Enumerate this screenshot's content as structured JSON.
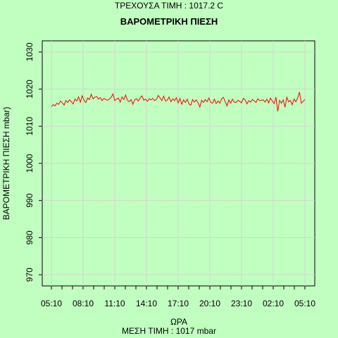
{
  "header": {
    "current_value": "ΤΡΕΧΟΥΣΑ ΤΙΜΗ : 1017.2 C"
  },
  "footer": {
    "mean_value": "ΜΕΣΗ ΤΙΜΗ : 1017 mbar"
  },
  "colors": {
    "background": "#c0ffc0",
    "line": "#ff0000",
    "grid": "#d3d3d3"
  },
  "chart_data": {
    "type": "line",
    "title": "ΒΑΡΟΜΕΤΡΙΚΗ ΠΙΕΣΗ",
    "xlabel": "ΩΡΑ",
    "ylabel": "ΒΑΡΟΜΕΤΡΙΚΗ ΠΙΕΣΗ mbar)",
    "ylim": [
      967,
      1033
    ],
    "yticks": [
      970,
      980,
      990,
      1000,
      1010,
      1020,
      1030
    ],
    "xtick_labels": [
      "05:10",
      "08:10",
      "11:10",
      "14:10",
      "17:10",
      "20:10",
      "23:10",
      "02:10",
      "05:10"
    ],
    "grid": true,
    "series": [
      {
        "values": [
          1015.3,
          1015.8,
          1015.5,
          1016.2,
          1015.9,
          1016.8,
          1016.3,
          1015.7,
          1016.9,
          1016.4,
          1017.1,
          1016.6,
          1016.0,
          1017.3,
          1016.8,
          1017.9,
          1016.5,
          1018.2,
          1017.0,
          1016.4,
          1017.6,
          1017.2,
          1018.6,
          1017.4,
          1017.8,
          1018.0,
          1017.3,
          1017.7,
          1016.9,
          1017.5,
          1017.2,
          1017.0,
          1017.3,
          1017.8,
          1018.7,
          1016.9,
          1017.3,
          1017.6,
          1016.5,
          1017.9,
          1017.2,
          1018.4,
          1017.0,
          1016.6,
          1017.2,
          1015.9,
          1017.1,
          1017.4,
          1016.8,
          1017.6,
          1018.2,
          1017.0,
          1017.3,
          1016.7,
          1017.4,
          1017.1,
          1017.5,
          1016.9,
          1017.2,
          1018.3,
          1017.6,
          1016.9,
          1018.1,
          1016.8,
          1017.0,
          1017.9,
          1016.6,
          1017.4,
          1016.9,
          1017.7,
          1016.3,
          1017.5,
          1015.9,
          1017.1,
          1016.4,
          1017.3,
          1016.0,
          1015.7,
          1017.2,
          1016.5,
          1017.1,
          1016.3,
          1015.2,
          1017.0,
          1016.4,
          1017.2,
          1016.6,
          1017.6,
          1016.4,
          1016.2,
          1017.3,
          1016.1,
          1016.8,
          1016.2,
          1017.4,
          1017.8,
          1016.6,
          1015.5,
          1017.1,
          1016.2,
          1017.3,
          1016.5,
          1016.4,
          1017.0,
          1016.7,
          1016.3,
          1017.5,
          1017.1,
          1016.0,
          1016.9,
          1016.5,
          1017.2,
          1016.8,
          1016.4,
          1017.4,
          1016.9,
          1017.0,
          1017.1,
          1016.5,
          1017.3,
          1016.3,
          1017.6,
          1016.8,
          1016.1,
          1017.8,
          1014.0,
          1017.0,
          1016.2,
          1017.1,
          1015.1,
          1017.8,
          1016.6,
          1016.9,
          1015.8,
          1017.3,
          1016.6,
          1017.6,
          1019.2,
          1016.2,
          1016.7,
          1017.2
        ]
      }
    ]
  }
}
